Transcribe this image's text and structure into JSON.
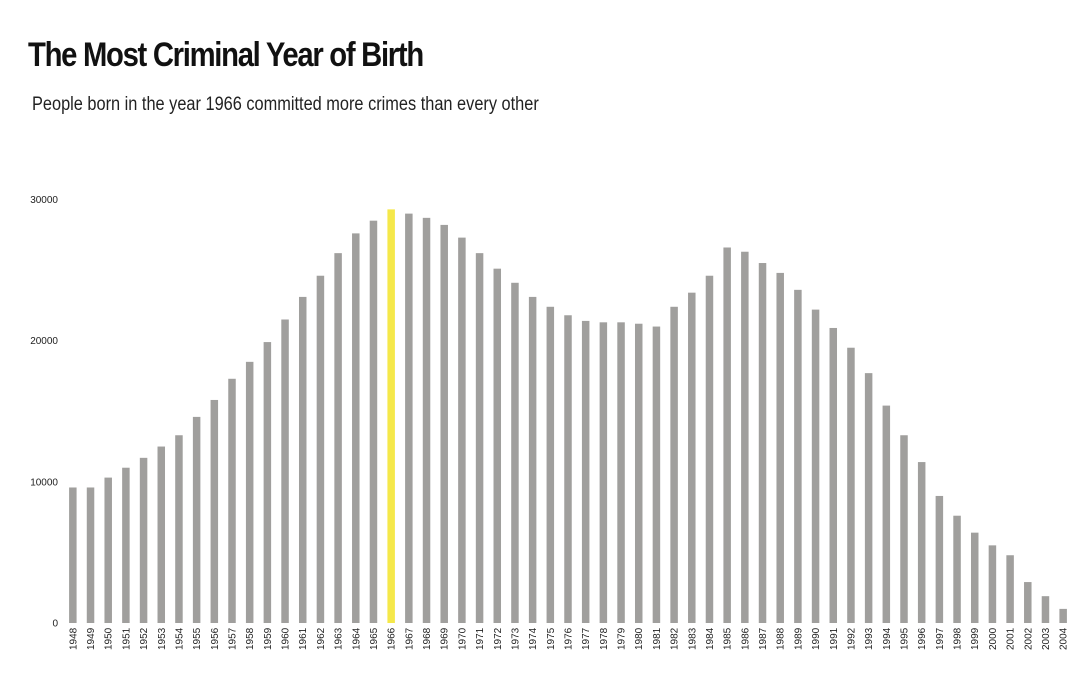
{
  "chart_data": {
    "type": "bar",
    "title": "The Most Criminal Year of Birth",
    "subtitle": "People born in the year 1966 committed more crimes than every other",
    "xlabel": "",
    "ylabel": "",
    "ylim": [
      0,
      30000
    ],
    "yticks": [
      0,
      10000,
      20000,
      30000
    ],
    "yticklabels": [
      "0",
      "10000",
      "20000",
      "30000"
    ],
    "grid": false,
    "highlight_category": "1966",
    "colors": {
      "bar": "#a09f9d",
      "highlight": "#f5e84a",
      "text": "#222222"
    },
    "categories": [
      "1948",
      "1949",
      "1950",
      "1951",
      "1952",
      "1953",
      "1954",
      "1955",
      "1956",
      "1957",
      "1958",
      "1959",
      "1960",
      "1961",
      "1962",
      "1963",
      "1964",
      "1965",
      "1966",
      "1967",
      "1968",
      "1969",
      "1970",
      "1971",
      "1972",
      "1973",
      "1974",
      "1975",
      "1976",
      "1977",
      "1978",
      "1979",
      "1980",
      "1981",
      "1982",
      "1983",
      "1984",
      "1985",
      "1986",
      "1987",
      "1988",
      "1989",
      "1990",
      "1991",
      "1992",
      "1993",
      "1994",
      "1995",
      "1996",
      "1997",
      "1998",
      "1999",
      "2000",
      "2001",
      "2002",
      "2003",
      "2004"
    ],
    "values": [
      9600,
      9600,
      10300,
      11000,
      11700,
      12500,
      13300,
      14600,
      15800,
      17300,
      18500,
      19900,
      21500,
      23100,
      24600,
      26200,
      27600,
      28500,
      29300,
      29000,
      28700,
      28200,
      27300,
      26200,
      25100,
      24100,
      23100,
      22400,
      21800,
      21400,
      21300,
      21300,
      21200,
      21000,
      22400,
      23400,
      24600,
      26600,
      26300,
      25500,
      24800,
      23600,
      22200,
      20900,
      19500,
      17700,
      15400,
      13300,
      11400,
      9000,
      7600,
      6400,
      5500,
      4800,
      2900,
      1900,
      1000
    ]
  }
}
